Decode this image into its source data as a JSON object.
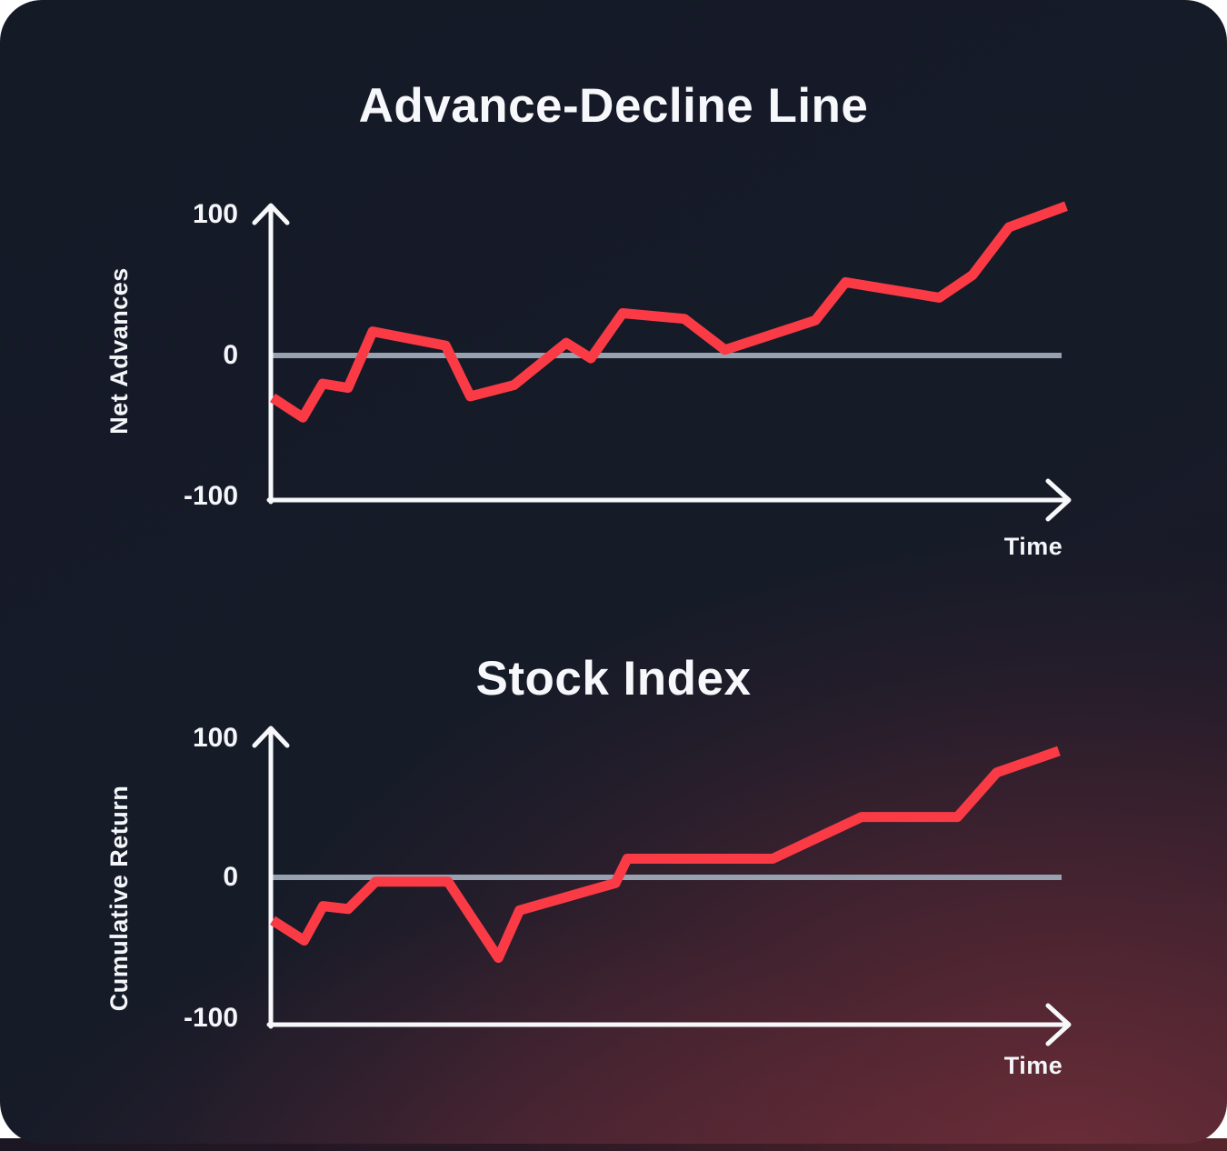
{
  "theme": {
    "page_background": "#ffffff",
    "card_background_base": "#161b28",
    "card_glow_maroon": "#5d2630",
    "line_red": "#fa3b45",
    "zero_line_gray": "#97a1b0",
    "axis_white": "#f7f8fa",
    "text_white": "#f4f6f9"
  },
  "chart_data": [
    {
      "type": "line",
      "title": "Advance-Decline Line",
      "xlabel": "Time",
      "ylabel": "Net Advances",
      "ylim": [
        -100,
        100
      ],
      "yticks": [
        100,
        0,
        -100
      ],
      "ytick_labels": [
        "100",
        "0",
        "-100"
      ],
      "grid": false,
      "zero_line": true,
      "axis_arrows": true,
      "legend": "none",
      "series": [
        {
          "name": "Net Advances",
          "color": "#fa3b45",
          "x": [
            0,
            3.8,
            6.3,
            9.5,
            12.6,
            21.8,
            24.9,
            30.4,
            37.0,
            40.1,
            44.1,
            51.9,
            57.0,
            68.4,
            72.2,
            84.0,
            88.2,
            92.8,
            100
          ],
          "y": [
            -30,
            -44,
            -20,
            -23,
            17,
            7,
            -29,
            -21,
            9,
            -2,
            30,
            26,
            4,
            25,
            52,
            41,
            57,
            91,
            106
          ]
        }
      ]
    },
    {
      "type": "line",
      "title": "Stock Index",
      "xlabel": "Time",
      "ylabel": "Cumulative Return",
      "ylim": [
        -100,
        100
      ],
      "yticks": [
        100,
        0,
        -100
      ],
      "ytick_labels": [
        "100",
        "0",
        "-100"
      ],
      "grid": false,
      "zero_line": true,
      "axis_arrows": true,
      "legend": "none",
      "series": [
        {
          "name": "Cumulative Return",
          "color": "#fa3b45",
          "x": [
            0,
            4.0,
            6.4,
            9.6,
            13.1,
            22.3,
            28.7,
            31.4,
            43.6,
            45.1,
            63.6,
            74.9,
            87.1,
            92.1,
            100
          ],
          "y": [
            -30,
            -44,
            -20,
            -22,
            -3,
            -3,
            -56,
            -23,
            -4,
            13,
            13,
            42,
            42,
            73,
            88
          ]
        }
      ]
    }
  ]
}
